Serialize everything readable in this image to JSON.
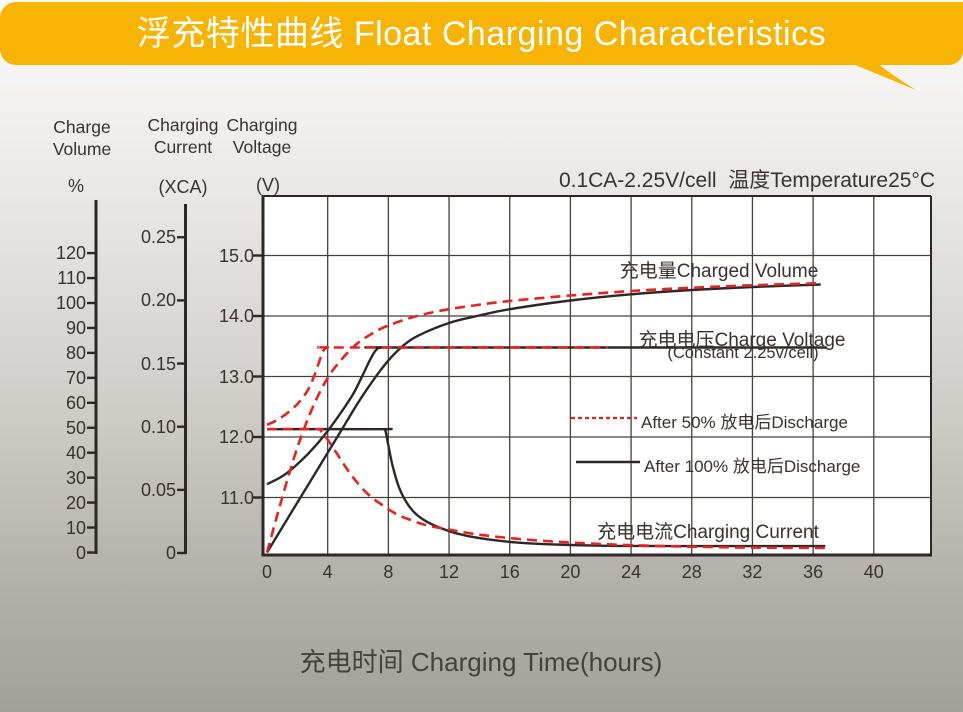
{
  "banner": {
    "title": "浮充特性曲线 Float Charging Characteristics"
  },
  "annotation": "0.1CA-2.25V/cell  温度Temperature25°C",
  "axes": {
    "volume": {
      "title1": "Charge",
      "title2": "Volume",
      "unit": "%",
      "tick_labels": [
        "0",
        "10",
        "20",
        "30",
        "40",
        "50",
        "60",
        "70",
        "80",
        "90",
        "100",
        "110",
        "120"
      ],
      "tick_values": [
        0,
        10,
        20,
        30,
        40,
        50,
        60,
        70,
        80,
        90,
        100,
        110,
        120
      ]
    },
    "current": {
      "title1": "Charging",
      "title2": "Current",
      "unit": "(XCA)",
      "tick_labels": [
        "0",
        "0.05",
        "0.10",
        "0.15",
        "0.20",
        "0.25"
      ],
      "tick_values": [
        0,
        0.05,
        0.1,
        0.15,
        0.2,
        0.25
      ]
    },
    "voltage": {
      "title1": "Charging",
      "title2": "Voltage",
      "unit": "(V)",
      "tick_labels": [
        "11.0",
        "12.0",
        "13.0",
        "14.0",
        "15.0"
      ],
      "tick_values": [
        11,
        12,
        13,
        14,
        15
      ]
    },
    "time": {
      "caption": "充电时间 Charging Time(hours)",
      "tick_labels": [
        "0",
        "4",
        "8",
        "12",
        "16",
        "20",
        "24",
        "28",
        "32",
        "36",
        "40"
      ],
      "tick_values": [
        0,
        4,
        8,
        12,
        16,
        20,
        24,
        28,
        32,
        36,
        40
      ]
    }
  },
  "labels": {
    "charged_volume": "充电量Charged Volume",
    "charge_voltage": "充电电压Charge Voltage",
    "charge_voltage_sub": "(Constant 2.25v/cell)",
    "charging_current": "充电电流Charging Current"
  },
  "colors": {
    "banner": "#F8B405",
    "red": "#E8231D",
    "black": "#2E2725",
    "grid": "#47403D",
    "plot_bg": "#FFFFFF"
  },
  "chart_data": {
    "type": "line",
    "title": "浮充特性曲线 Float Charging Characteristics",
    "condition": "0.1CA-2.25V/cell  温度Temperature25°C",
    "xlabel": "充电时间 Charging Time(hours)",
    "x_ticks": [
      0,
      4,
      8,
      12,
      16,
      20,
      24,
      28,
      32,
      36,
      40
    ],
    "x_range_hours": [
      0,
      44
    ],
    "grid": true,
    "y_axes": {
      "percent": {
        "label": "Charge Volume (%)",
        "ticks": [
          0,
          10,
          20,
          30,
          40,
          50,
          60,
          70,
          80,
          90,
          100,
          110,
          120
        ]
      },
      "current": {
        "label": "Charging Current (XCA)",
        "ticks": [
          0,
          0.05,
          0.1,
          0.15,
          0.2,
          0.25
        ]
      },
      "voltage": {
        "label": "Charging Voltage (V)",
        "ticks": [
          11.0,
          12.0,
          13.0,
          14.0,
          15.0
        ]
      }
    },
    "legend": [
      {
        "label": "After 50% 放电后Discharge",
        "style": "dashed",
        "color": "#E8231D"
      },
      {
        "label": "After 100% 放电后Discharge",
        "style": "solid",
        "color": "#2E2725"
      }
    ],
    "series": [
      {
        "name": "charged-volume-after-50-discharge",
        "axis": "percent",
        "style": "dashed",
        "color": "#E8231D",
        "points": [
          [
            0,
            0
          ],
          [
            1,
            22
          ],
          [
            2,
            42
          ],
          [
            3,
            58
          ],
          [
            4,
            70
          ],
          [
            5,
            78
          ],
          [
            6,
            84
          ],
          [
            7,
            88
          ],
          [
            8,
            91
          ],
          [
            10,
            95
          ],
          [
            12,
            97.5
          ],
          [
            14,
            99.3
          ],
          [
            16,
            100.8
          ],
          [
            20,
            103
          ],
          [
            24,
            104.8
          ],
          [
            28,
            106.1
          ],
          [
            32,
            107.1
          ],
          [
            36.3,
            107.9
          ]
        ]
      },
      {
        "name": "charged-volume-after-100-discharge",
        "axis": "percent",
        "style": "solid",
        "color": "#2E2725",
        "points": [
          [
            0,
            0
          ],
          [
            2,
            20
          ],
          [
            4,
            40
          ],
          [
            5,
            50
          ],
          [
            6,
            60
          ],
          [
            7,
            69
          ],
          [
            8,
            77
          ],
          [
            9,
            83
          ],
          [
            10,
            87
          ],
          [
            12,
            92
          ],
          [
            14,
            95
          ],
          [
            16,
            97.5
          ],
          [
            20,
            101
          ],
          [
            24,
            103.5
          ],
          [
            28,
            105.2
          ],
          [
            32,
            106.4
          ],
          [
            36.5,
            107.4
          ]
        ]
      },
      {
        "name": "charge-voltage-after-50-discharge",
        "axis": "voltage",
        "style": "dashed",
        "color": "#E8231D",
        "points": [
          [
            0,
            12.2
          ],
          [
            0.8,
            12.3
          ],
          [
            1.6,
            12.45
          ],
          [
            2.2,
            12.6
          ],
          [
            2.7,
            12.78
          ],
          [
            3.1,
            13.0
          ],
          [
            3.45,
            13.25
          ],
          [
            3.7,
            13.42
          ],
          [
            4,
            13.48
          ],
          [
            5,
            13.48
          ],
          [
            22.5,
            13.48
          ]
        ]
      },
      {
        "name": "charge-voltage-after-100-discharge",
        "axis": "voltage",
        "style": "solid",
        "color": "#2E2725",
        "points": [
          [
            0,
            11.22
          ],
          [
            1,
            11.35
          ],
          [
            2,
            11.55
          ],
          [
            3,
            11.8
          ],
          [
            4,
            12.1
          ],
          [
            5,
            12.45
          ],
          [
            5.7,
            12.72
          ],
          [
            6.3,
            13.02
          ],
          [
            6.8,
            13.28
          ],
          [
            7.2,
            13.44
          ],
          [
            7.6,
            13.48
          ],
          [
            9,
            13.48
          ],
          [
            36.9,
            13.48
          ]
        ]
      },
      {
        "name": "charging-current-after-50-discharge",
        "axis": "current",
        "style": "dashed",
        "color": "#E8231D",
        "points": [
          [
            0,
            0.098
          ],
          [
            3.3,
            0.098
          ],
          [
            3.6,
            0.096
          ],
          [
            4.1,
            0.088
          ],
          [
            4.7,
            0.077
          ],
          [
            5.3,
            0.066
          ],
          [
            6,
            0.055
          ],
          [
            6.8,
            0.045
          ],
          [
            7.6,
            0.038
          ],
          [
            8.5,
            0.031
          ],
          [
            9.5,
            0.026
          ],
          [
            10.5,
            0.022
          ],
          [
            12,
            0.0185
          ],
          [
            14,
            0.0145
          ],
          [
            16,
            0.0118
          ],
          [
            18,
            0.0098
          ],
          [
            20,
            0.0083
          ],
          [
            22,
            0.0071
          ],
          [
            24,
            0.0062
          ],
          [
            26,
            0.0055
          ],
          [
            28,
            0.005
          ],
          [
            32,
            0.0043
          ],
          [
            36.8,
            0.004
          ]
        ]
      },
      {
        "name": "charging-current-after-100-discharge",
        "axis": "current",
        "style": "solid",
        "color": "#2E2725",
        "points": [
          [
            0,
            0.098
          ],
          [
            7.6,
            0.098
          ],
          [
            7.8,
            0.097
          ],
          [
            8.0,
            0.085
          ],
          [
            8.3,
            0.068
          ],
          [
            8.7,
            0.052
          ],
          [
            9.2,
            0.04
          ],
          [
            9.8,
            0.031
          ],
          [
            10.5,
            0.025
          ],
          [
            11.5,
            0.0195
          ],
          [
            12.5,
            0.0155
          ],
          [
            14,
            0.0118
          ],
          [
            16,
            0.0088
          ],
          [
            18,
            0.0072
          ],
          [
            20,
            0.0063
          ],
          [
            22,
            0.0058
          ],
          [
            24,
            0.0056
          ],
          [
            28,
            0.0055
          ],
          [
            32,
            0.0055
          ],
          [
            36.8,
            0.0055
          ]
        ]
      }
    ]
  }
}
